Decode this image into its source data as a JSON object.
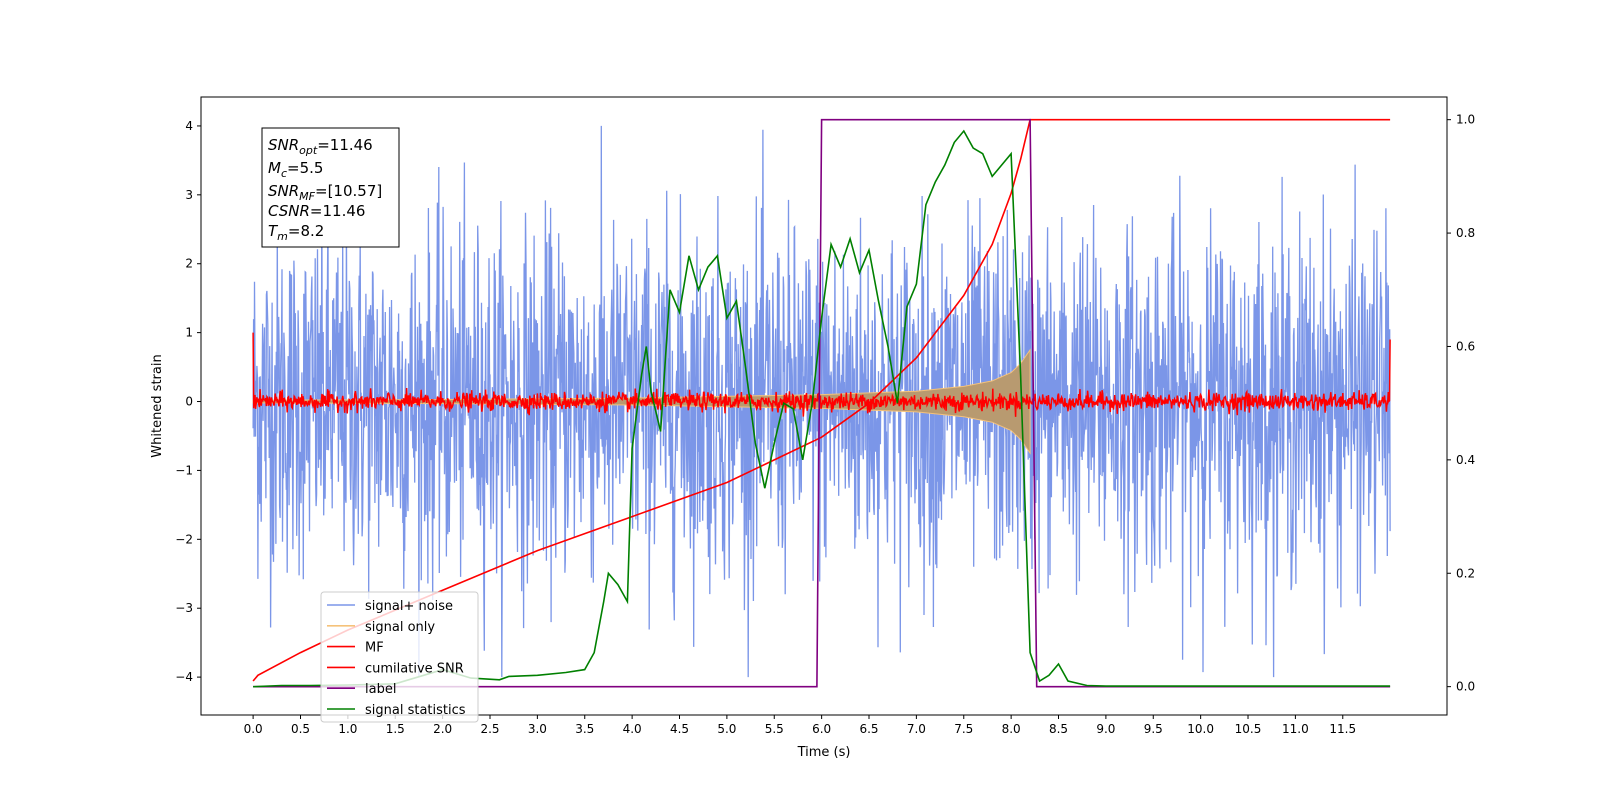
{
  "chart_data": {
    "type": "line",
    "xlabel": "Time (s)",
    "ylabel": "Whitened strain",
    "xlim": [
      -0.55,
      12.6
    ],
    "ylim": [
      -4.55,
      4.42
    ],
    "y2lim": [
      -0.05,
      1.04
    ],
    "x_ticks": [
      "0.0",
      "0.5",
      "1.0",
      "1.5",
      "2.0",
      "2.5",
      "3.0",
      "3.5",
      "4.0",
      "4.5",
      "5.0",
      "5.5",
      "6.0",
      "6.5",
      "7.0",
      "7.5",
      "8.0",
      "8.5",
      "9.0",
      "9.5",
      "10.0",
      "10.5",
      "11.0",
      "11.5"
    ],
    "y_ticks": [
      "4",
      "3",
      "2",
      "1",
      "0",
      "−1",
      "−2",
      "−3",
      "−4"
    ],
    "y2_ticks": [
      "1.0",
      "0.8",
      "0.6",
      "0.4",
      "0.2",
      "0.0"
    ],
    "grid": false,
    "legend_position": "lower-left",
    "info_box": {
      "snr_opt": {
        "base": "SNR",
        "sub": "opt",
        "value": "=11.46"
      },
      "mc": {
        "base": "M",
        "sub": "c",
        "value": "=5.5"
      },
      "snr_mf": {
        "base": "SNR",
        "sub": "MF",
        "value": "=[10.57]"
      },
      "csnr": {
        "base": "CSNR",
        "sub": "",
        "value": "=11.46"
      },
      "tm": {
        "base": "T",
        "sub": "m",
        "value": "=8.2"
      }
    },
    "series": [
      {
        "name": "signal+ noise",
        "color": "#7b96e8",
        "axis": "left",
        "description_values": {
          "x_range": [
            0.0,
            12.0
          ],
          "approx_peak_abs": 4.0
        }
      },
      {
        "name": "signal only",
        "color": "#f5c27a",
        "axis": "left",
        "envelope": {
          "x": [
            0.0,
            2.0,
            4.0,
            6.0,
            7.0,
            7.5,
            7.8,
            8.0,
            8.1,
            8.2
          ],
          "half_width": [
            0.02,
            0.03,
            0.05,
            0.1,
            0.15,
            0.22,
            0.3,
            0.42,
            0.55,
            0.75
          ]
        }
      },
      {
        "name": "MF",
        "color": "#ff0000",
        "axis": "left",
        "noise_band": 0.12
      },
      {
        "name": "cumilative SNR",
        "color": "#ff0000",
        "axis": "right",
        "x": [
          0.0,
          0.05,
          0.5,
          1.0,
          2.0,
          3.0,
          4.0,
          5.0,
          5.5,
          6.0,
          6.5,
          7.0,
          7.5,
          7.8,
          8.0,
          8.1,
          8.2,
          8.2,
          12.0
        ],
        "y": [
          0.01,
          0.02,
          0.06,
          0.1,
          0.17,
          0.24,
          0.3,
          0.36,
          0.4,
          0.44,
          0.5,
          0.58,
          0.69,
          0.78,
          0.87,
          0.93,
          1.0,
          1.0,
          1.0
        ]
      },
      {
        "name": "label",
        "color": "#800080",
        "axis": "right",
        "x": [
          0.0,
          5.95,
          6.0,
          8.2,
          8.27,
          12.0
        ],
        "y": [
          0.0,
          0.0,
          1.0,
          1.0,
          0.0,
          0.0
        ]
      },
      {
        "name": "signal statistics",
        "color": "#008000",
        "axis": "right",
        "x": [
          0.0,
          0.3,
          0.6,
          1.0,
          1.5,
          1.8,
          2.0,
          2.3,
          2.6,
          2.7,
          3.0,
          3.3,
          3.5,
          3.6,
          3.7,
          3.75,
          3.85,
          3.95,
          4.0,
          4.1,
          4.15,
          4.2,
          4.3,
          4.4,
          4.5,
          4.6,
          4.7,
          4.8,
          4.9,
          5.0,
          5.1,
          5.2,
          5.3,
          5.4,
          5.5,
          5.6,
          5.7,
          5.8,
          5.9,
          6.0,
          6.1,
          6.2,
          6.3,
          6.4,
          6.5,
          6.6,
          6.7,
          6.8,
          6.9,
          7.0,
          7.1,
          7.2,
          7.3,
          7.4,
          7.5,
          7.6,
          7.7,
          7.8,
          7.9,
          8.0,
          8.1,
          8.2,
          8.3,
          8.4,
          8.5,
          8.6,
          8.8,
          9.0,
          12.0
        ],
        "y": [
          0.0,
          0.002,
          0.002,
          0.003,
          0.005,
          0.02,
          0.03,
          0.015,
          0.012,
          0.018,
          0.02,
          0.025,
          0.03,
          0.06,
          0.15,
          0.2,
          0.18,
          0.15,
          0.42,
          0.55,
          0.6,
          0.52,
          0.45,
          0.7,
          0.66,
          0.76,
          0.7,
          0.74,
          0.76,
          0.65,
          0.68,
          0.56,
          0.43,
          0.35,
          0.43,
          0.5,
          0.49,
          0.4,
          0.5,
          0.65,
          0.78,
          0.74,
          0.79,
          0.73,
          0.77,
          0.68,
          0.6,
          0.5,
          0.67,
          0.71,
          0.85,
          0.89,
          0.92,
          0.96,
          0.98,
          0.95,
          0.94,
          0.9,
          0.92,
          0.94,
          0.55,
          0.06,
          0.01,
          0.02,
          0.04,
          0.01,
          0.002,
          0.001,
          0.001
        ]
      }
    ]
  }
}
